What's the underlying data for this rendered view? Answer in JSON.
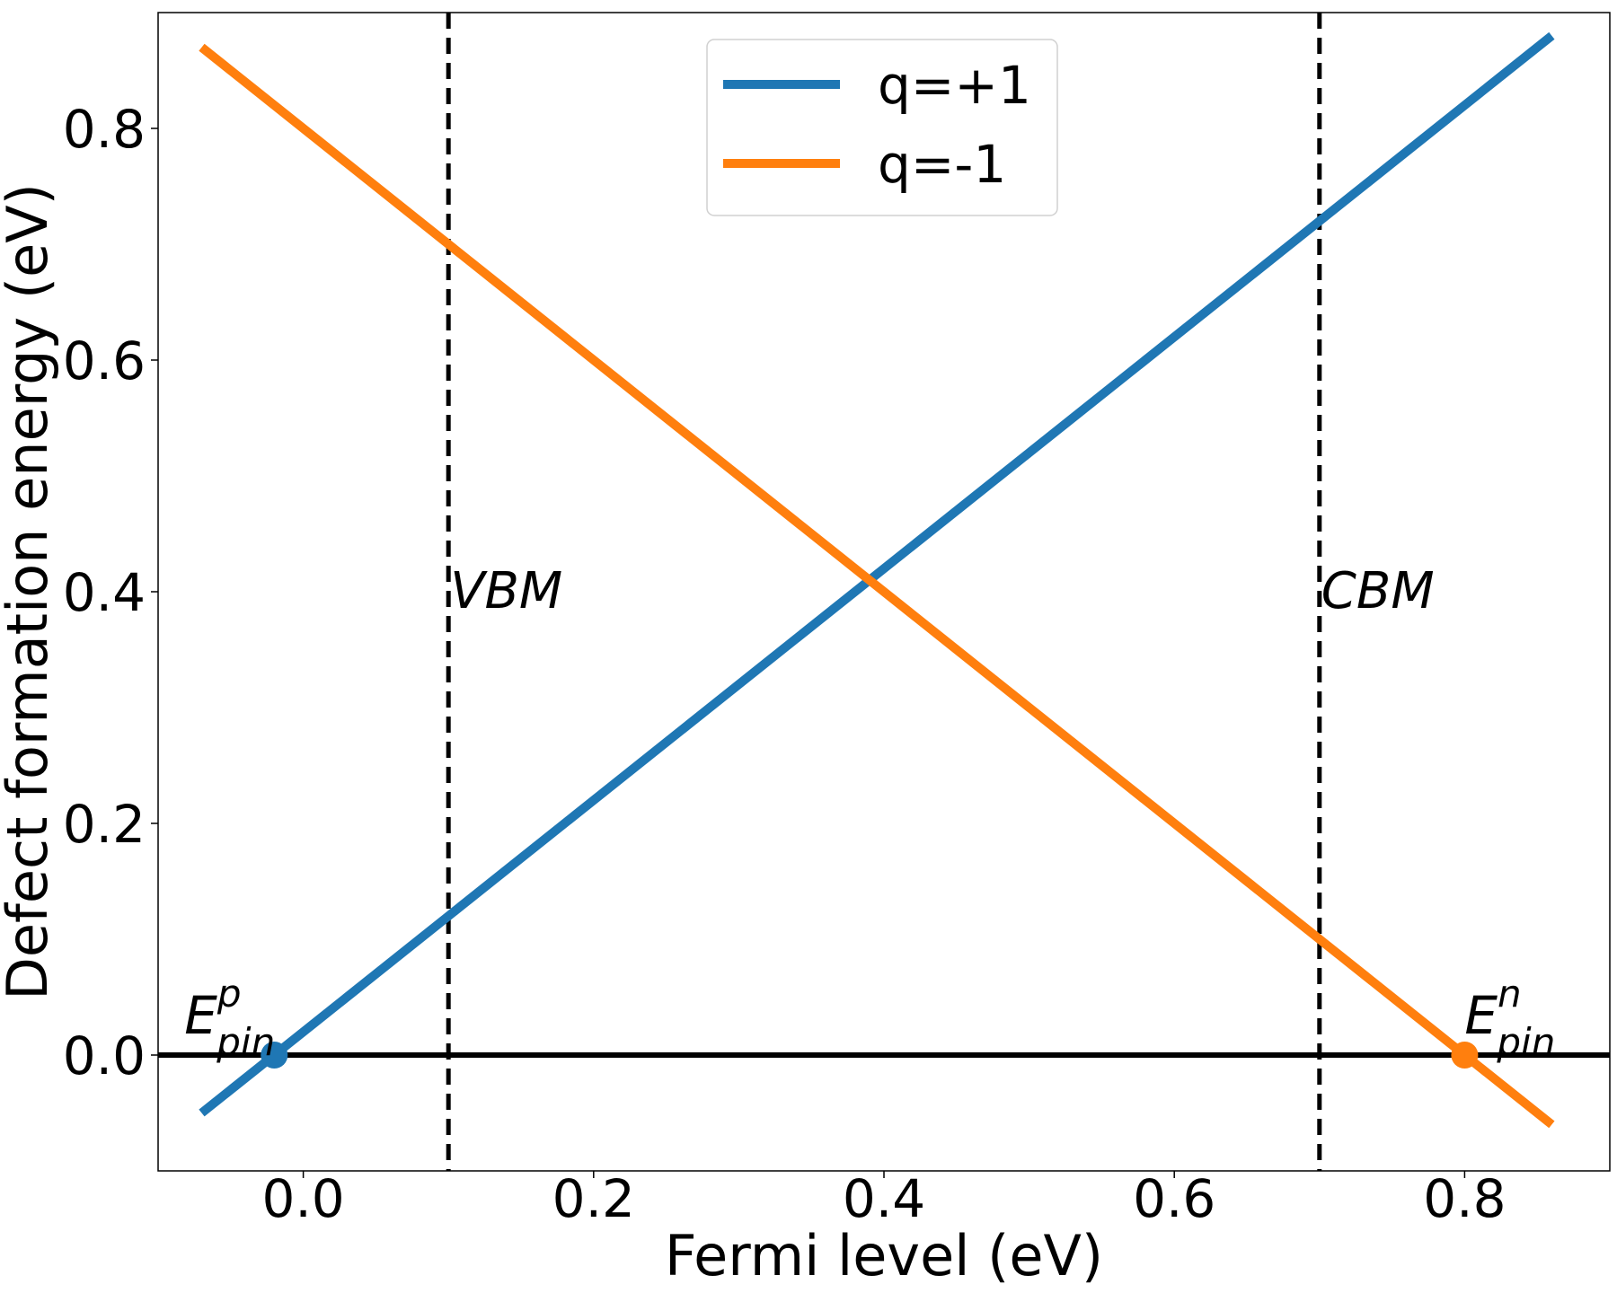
{
  "chart_data": {
    "type": "line",
    "title": "",
    "xlabel": "Fermi level (eV)",
    "ylabel": "Defect formation energy (eV)",
    "xlim": [
      -0.1,
      0.9
    ],
    "ylim": [
      -0.1,
      0.9
    ],
    "xticks": [
      {
        "value": 0.0,
        "label": "0.0"
      },
      {
        "value": 0.2,
        "label": "0.2"
      },
      {
        "value": 0.4,
        "label": "0.4"
      },
      {
        "value": 0.6,
        "label": "0.6"
      },
      {
        "value": 0.8,
        "label": "0.8"
      }
    ],
    "yticks": [
      {
        "value": 0.0,
        "label": "0.0"
      },
      {
        "value": 0.2,
        "label": "0.2"
      },
      {
        "value": 0.4,
        "label": "0.4"
      },
      {
        "value": 0.6,
        "label": "0.6"
      },
      {
        "value": 0.8,
        "label": "0.8"
      }
    ],
    "grid": false,
    "legend_position": "upper center",
    "series": [
      {
        "name": "q=+1",
        "color": "#1f77b4",
        "x": [
          -0.07,
          0.86
        ],
        "y": [
          -0.05,
          0.88
        ]
      },
      {
        "name": "q=-1",
        "color": "#ff7f0e",
        "x": [
          -0.07,
          0.86
        ],
        "y": [
          0.87,
          -0.06
        ]
      }
    ],
    "reference_lines": [
      {
        "kind": "horizontal",
        "value": 0.0,
        "color": "#000000",
        "style": "solid"
      },
      {
        "kind": "vertical",
        "value": 0.1,
        "label": "VBM",
        "color": "#000000",
        "style": "dashed"
      },
      {
        "kind": "vertical",
        "value": 0.7,
        "label": "CBM",
        "color": "#000000",
        "style": "dashed"
      }
    ],
    "pinning_points": [
      {
        "name": "p",
        "x": -0.02,
        "y": 0.0,
        "color": "#1f77b4",
        "label_base": "E",
        "label_sup": "p",
        "label_sub": "pin"
      },
      {
        "name": "n",
        "x": 0.8,
        "y": 0.0,
        "color": "#ff7f0e",
        "label_base": "E",
        "label_sup": "n",
        "label_sub": "pin"
      }
    ]
  }
}
